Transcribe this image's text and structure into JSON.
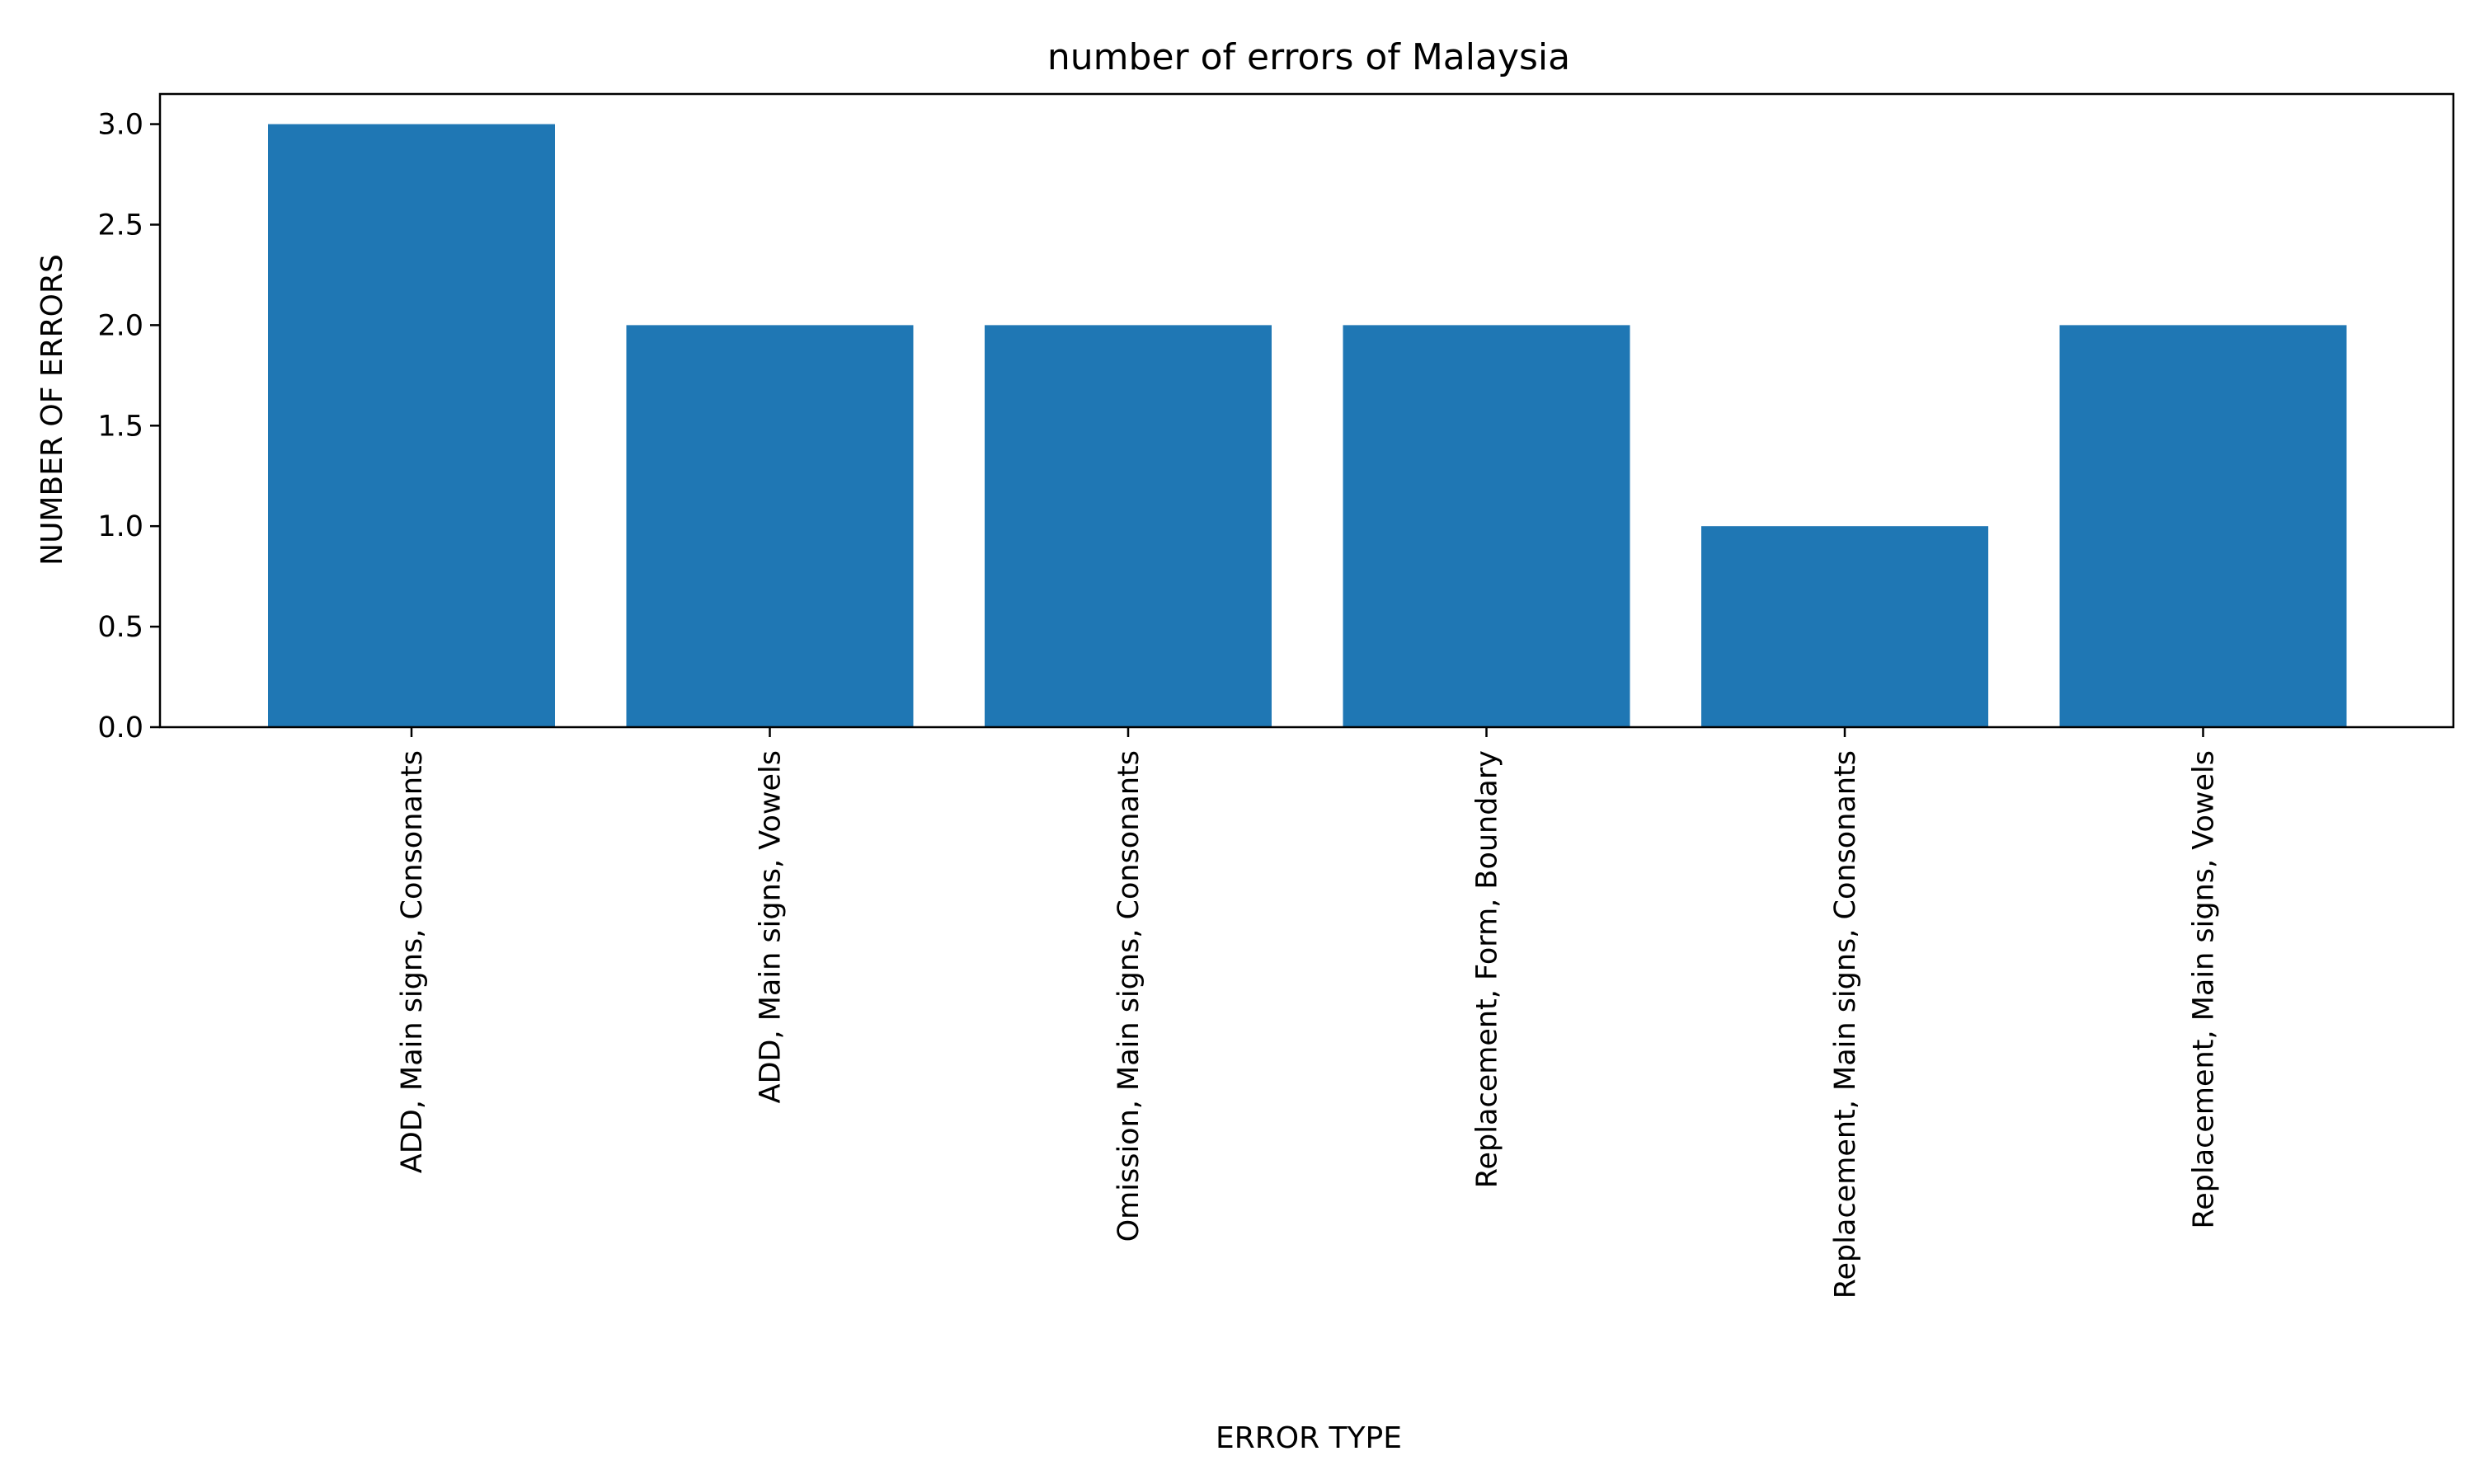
{
  "chart_data": {
    "type": "bar",
    "title": "number of errors of Malaysia",
    "xlabel": "ERROR TYPE",
    "ylabel": "NUMBER OF ERRORS",
    "categories": [
      "ADD, Main signs, Consonants",
      "ADD, Main signs, Vowels",
      "Omission, Main signs, Consonants",
      "Replacement, Form, Boundary",
      "Replacement, Main signs, Consonants",
      "Replacement, Main signs, Vowels"
    ],
    "values": [
      3,
      2,
      2,
      2,
      1,
      2
    ],
    "ylim": [
      0,
      3.15
    ],
    "yticks": [
      "0.0",
      "0.5",
      "1.0",
      "1.5",
      "2.0",
      "2.5",
      "3.0"
    ],
    "bar_color": "#1f77b4",
    "grid": false,
    "legend": "none"
  }
}
